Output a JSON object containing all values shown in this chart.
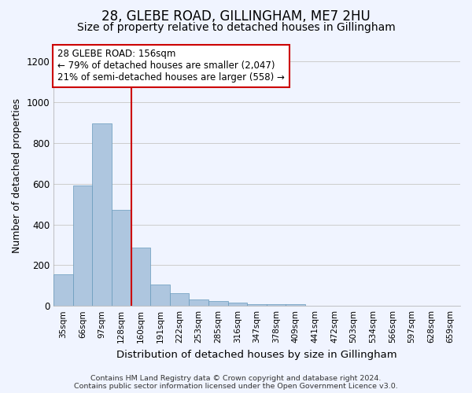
{
  "title1": "28, GLEBE ROAD, GILLINGHAM, ME7 2HU",
  "title2": "Size of property relative to detached houses in Gillingham",
  "xlabel": "Distribution of detached houses by size in Gillingham",
  "ylabel": "Number of detached properties",
  "categories": [
    "35sqm",
    "66sqm",
    "97sqm",
    "128sqm",
    "160sqm",
    "191sqm",
    "222sqm",
    "253sqm",
    "285sqm",
    "316sqm",
    "347sqm",
    "378sqm",
    "409sqm",
    "441sqm",
    "472sqm",
    "503sqm",
    "534sqm",
    "566sqm",
    "597sqm",
    "628sqm",
    "659sqm"
  ],
  "values": [
    155,
    590,
    895,
    470,
    285,
    105,
    63,
    30,
    22,
    15,
    10,
    10,
    8,
    0,
    0,
    0,
    0,
    0,
    0,
    0,
    0
  ],
  "bar_color": "#aec6df",
  "bar_edge_color": "#6699bb",
  "grid_color": "#cccccc",
  "bg_color": "#f0f4ff",
  "vline_color": "#cc0000",
  "annotation_line1": "28 GLEBE ROAD: 156sqm",
  "annotation_line2": "← 79% of detached houses are smaller (2,047)",
  "annotation_line3": "21% of semi-detached houses are larger (558) →",
  "annotation_box_color": "#cc0000",
  "annotation_bg": "#ffffff",
  "footer1": "Contains HM Land Registry data © Crown copyright and database right 2024.",
  "footer2": "Contains public sector information licensed under the Open Government Licence v3.0.",
  "ylim": [
    0,
    1280
  ],
  "yticks": [
    0,
    200,
    400,
    600,
    800,
    1000,
    1200
  ],
  "title1_fontsize": 12,
  "title2_fontsize": 10,
  "xlabel_fontsize": 9.5,
  "ylabel_fontsize": 9,
  "annot_fontsize": 8.5
}
